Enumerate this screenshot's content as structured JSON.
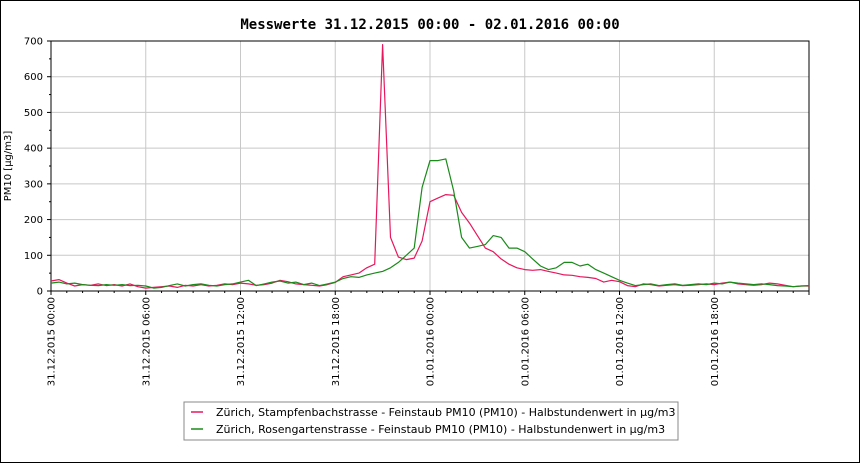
{
  "chart_data": {
    "type": "line",
    "title": "Messwerte 31.12.2015 00:00 - 02.01.2016 00:00",
    "xlabel": "",
    "ylabel": "PM10 [µg/m3]",
    "ylim": [
      0,
      700
    ],
    "y_ticks": [
      0,
      100,
      200,
      300,
      400,
      500,
      600,
      700
    ],
    "xlim_hours": [
      0,
      48
    ],
    "x_ticks": [
      {
        "h": 0,
        "label": "31.12.2015 00:00"
      },
      {
        "h": 6,
        "label": "31.12.2015 06:00"
      },
      {
        "h": 12,
        "label": "31.12.2015 12:00"
      },
      {
        "h": 18,
        "label": "31.12.2015 18:00"
      },
      {
        "h": 24,
        "label": "01.01.2016 00:00"
      },
      {
        "h": 30,
        "label": "01.01.2016 06:00"
      },
      {
        "h": 36,
        "label": "01.01.2016 12:00"
      },
      {
        "h": 42,
        "label": "01.01.2016 18:00"
      }
    ],
    "grid": true,
    "legend_position": "bottom",
    "series": [
      {
        "name": "Zürich, Stampfenbachstrasse - Feinstaub PM10  (PM10) - Halbstundenwert in µg/m3",
        "color": "#e8175d",
        "x": [
          0,
          0.5,
          1,
          1.5,
          2,
          2.5,
          3,
          3.5,
          4,
          4.5,
          5,
          5.5,
          6,
          6.5,
          7,
          7.5,
          8,
          8.5,
          9,
          9.5,
          10,
          10.5,
          11,
          11.5,
          12,
          12.5,
          13,
          13.5,
          14,
          14.5,
          15,
          15.5,
          16,
          16.5,
          17,
          17.5,
          18,
          18.5,
          19,
          19.5,
          20,
          20.5,
          21,
          21.5,
          22,
          22.5,
          23,
          23.5,
          24,
          24.5,
          25,
          25.5,
          26,
          26.5,
          27,
          27.5,
          28,
          28.5,
          29,
          29.5,
          30,
          30.5,
          31,
          31.5,
          32,
          32.5,
          33,
          33.5,
          34,
          34.5,
          35,
          35.5,
          36,
          36.5,
          37,
          37.5,
          38,
          38.5,
          39,
          39.5,
          40,
          40.5,
          41,
          41.5,
          42,
          42.5,
          43,
          43.5,
          44,
          44.5,
          45,
          45.5,
          46,
          46.5,
          47,
          47.5,
          48
        ],
        "y": [
          28,
          32,
          22,
          14,
          18,
          16,
          20,
          15,
          18,
          14,
          20,
          12,
          8,
          10,
          12,
          14,
          10,
          16,
          14,
          18,
          14,
          16,
          20,
          18,
          22,
          20,
          16,
          18,
          22,
          30,
          26,
          20,
          18,
          16,
          14,
          18,
          24,
          40,
          45,
          50,
          65,
          75,
          690,
          150,
          95,
          88,
          92,
          140,
          250,
          260,
          270,
          268,
          220,
          190,
          155,
          120,
          110,
          90,
          75,
          65,
          60,
          58,
          60,
          55,
          50,
          45,
          44,
          40,
          38,
          35,
          25,
          30,
          26,
          15,
          12,
          20,
          18,
          14,
          16,
          18,
          15,
          16,
          18,
          20,
          18,
          22,
          25,
          20,
          18,
          16,
          18,
          22,
          20,
          16,
          12,
          14,
          14
        ]
      },
      {
        "name": "Zürich, Rosengartenstrasse - Feinstaub PM10  (PM10) - Halbstundenwert in µg/m3",
        "color": "#1a8a1a",
        "x": [
          0,
          0.5,
          1,
          1.5,
          2,
          2.5,
          3,
          3.5,
          4,
          4.5,
          5,
          5.5,
          6,
          6.5,
          7,
          7.5,
          8,
          8.5,
          9,
          9.5,
          10,
          10.5,
          11,
          11.5,
          12,
          12.5,
          13,
          13.5,
          14,
          14.5,
          15,
          15.5,
          16,
          16.5,
          17,
          17.5,
          18,
          18.5,
          19,
          19.5,
          20,
          20.5,
          21,
          21.5,
          22,
          22.5,
          23,
          23.5,
          24,
          24.5,
          25,
          25.5,
          26,
          26.5,
          27,
          27.5,
          28,
          28.5,
          29,
          29.5,
          30,
          30.5,
          31,
          31.5,
          32,
          32.5,
          33,
          33.5,
          34,
          34.5,
          35,
          35.5,
          36,
          36.5,
          37,
          37.5,
          38,
          38.5,
          39,
          39.5,
          40,
          40.5,
          41,
          41.5,
          42,
          42.5,
          43,
          43.5,
          44,
          44.5,
          45,
          45.5,
          46,
          46.5,
          47,
          47.5,
          48
        ],
        "y": [
          22,
          25,
          20,
          22,
          18,
          16,
          15,
          18,
          16,
          18,
          15,
          16,
          14,
          8,
          10,
          15,
          20,
          14,
          18,
          20,
          16,
          14,
          18,
          20,
          25,
          30,
          15,
          20,
          25,
          28,
          22,
          25,
          18,
          22,
          15,
          20,
          25,
          35,
          40,
          38,
          45,
          50,
          55,
          65,
          80,
          100,
          120,
          290,
          365,
          365,
          370,
          280,
          150,
          120,
          125,
          130,
          155,
          150,
          120,
          120,
          110,
          90,
          70,
          60,
          65,
          80,
          80,
          70,
          75,
          60,
          50,
          40,
          30,
          22,
          15,
          18,
          20,
          15,
          18,
          20,
          16,
          18,
          20,
          18,
          22,
          20,
          25,
          22,
          20,
          18,
          20,
          18,
          15,
          14,
          12,
          14,
          15
        ]
      }
    ]
  }
}
